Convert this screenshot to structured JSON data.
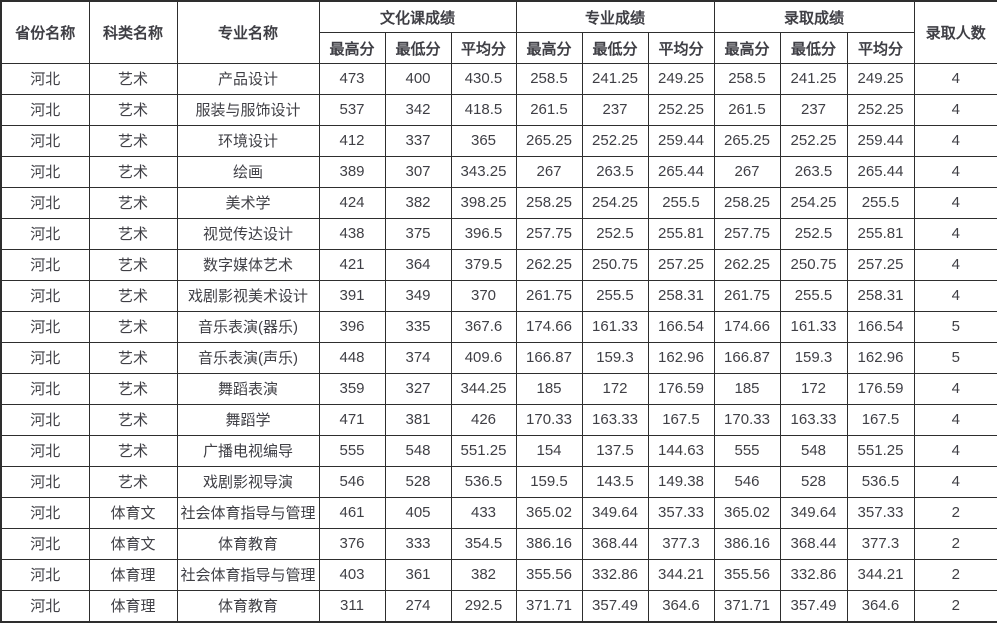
{
  "colors": {
    "border": "#2e2e2e",
    "text": "#3f3f45",
    "background": "#ffffff"
  },
  "table": {
    "header": {
      "province": "省份名称",
      "category": "科类名称",
      "major": "专业名称",
      "culture_group": "文化课成绩",
      "major_group": "专业成绩",
      "admission_group": "录取成绩",
      "count": "录取人数",
      "sub": [
        "最高分",
        "最低分",
        "平均分"
      ]
    },
    "column_keys": [
      "province",
      "category",
      "major",
      "culture-max",
      "culture-min",
      "culture-avg",
      "major-max",
      "major-min",
      "major-avg",
      "admit-max",
      "admit-min",
      "admit-avg",
      "count"
    ],
    "rows": [
      [
        "河北",
        "艺术",
        "产品设计",
        "473",
        "400",
        "430.5",
        "258.5",
        "241.25",
        "249.25",
        "258.5",
        "241.25",
        "249.25",
        "4"
      ],
      [
        "河北",
        "艺术",
        "服装与服饰设计",
        "537",
        "342",
        "418.5",
        "261.5",
        "237",
        "252.25",
        "261.5",
        "237",
        "252.25",
        "4"
      ],
      [
        "河北",
        "艺术",
        "环境设计",
        "412",
        "337",
        "365",
        "265.25",
        "252.25",
        "259.44",
        "265.25",
        "252.25",
        "259.44",
        "4"
      ],
      [
        "河北",
        "艺术",
        "绘画",
        "389",
        "307",
        "343.25",
        "267",
        "263.5",
        "265.44",
        "267",
        "263.5",
        "265.44",
        "4"
      ],
      [
        "河北",
        "艺术",
        "美术学",
        "424",
        "382",
        "398.25",
        "258.25",
        "254.25",
        "255.5",
        "258.25",
        "254.25",
        "255.5",
        "4"
      ],
      [
        "河北",
        "艺术",
        "视觉传达设计",
        "438",
        "375",
        "396.5",
        "257.75",
        "252.5",
        "255.81",
        "257.75",
        "252.5",
        "255.81",
        "4"
      ],
      [
        "河北",
        "艺术",
        "数字媒体艺术",
        "421",
        "364",
        "379.5",
        "262.25",
        "250.75",
        "257.25",
        "262.25",
        "250.75",
        "257.25",
        "4"
      ],
      [
        "河北",
        "艺术",
        "戏剧影视美术设计",
        "391",
        "349",
        "370",
        "261.75",
        "255.5",
        "258.31",
        "261.75",
        "255.5",
        "258.31",
        "4"
      ],
      [
        "河北",
        "艺术",
        "音乐表演(器乐)",
        "396",
        "335",
        "367.6",
        "174.66",
        "161.33",
        "166.54",
        "174.66",
        "161.33",
        "166.54",
        "5"
      ],
      [
        "河北",
        "艺术",
        "音乐表演(声乐)",
        "448",
        "374",
        "409.6",
        "166.87",
        "159.3",
        "162.96",
        "166.87",
        "159.3",
        "162.96",
        "5"
      ],
      [
        "河北",
        "艺术",
        "舞蹈表演",
        "359",
        "327",
        "344.25",
        "185",
        "172",
        "176.59",
        "185",
        "172",
        "176.59",
        "4"
      ],
      [
        "河北",
        "艺术",
        "舞蹈学",
        "471",
        "381",
        "426",
        "170.33",
        "163.33",
        "167.5",
        "170.33",
        "163.33",
        "167.5",
        "4"
      ],
      [
        "河北",
        "艺术",
        "广播电视编导",
        "555",
        "548",
        "551.25",
        "154",
        "137.5",
        "144.63",
        "555",
        "548",
        "551.25",
        "4"
      ],
      [
        "河北",
        "艺术",
        "戏剧影视导演",
        "546",
        "528",
        "536.5",
        "159.5",
        "143.5",
        "149.38",
        "546",
        "528",
        "536.5",
        "4"
      ],
      [
        "河北",
        "体育文",
        "社会体育指导与管理",
        "461",
        "405",
        "433",
        "365.02",
        "349.64",
        "357.33",
        "365.02",
        "349.64",
        "357.33",
        "2"
      ],
      [
        "河北",
        "体育文",
        "体育教育",
        "376",
        "333",
        "354.5",
        "386.16",
        "368.44",
        "377.3",
        "386.16",
        "368.44",
        "377.3",
        "2"
      ],
      [
        "河北",
        "体育理",
        "社会体育指导与管理",
        "403",
        "361",
        "382",
        "355.56",
        "332.86",
        "344.21",
        "355.56",
        "332.86",
        "344.21",
        "2"
      ],
      [
        "河北",
        "体育理",
        "体育教育",
        "311",
        "274",
        "292.5",
        "371.71",
        "357.49",
        "364.6",
        "371.71",
        "357.49",
        "364.6",
        "2"
      ]
    ]
  }
}
